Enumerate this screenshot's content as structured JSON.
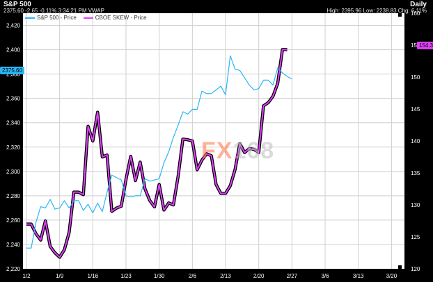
{
  "header": {
    "title": "S&P 500",
    "quote": "2375.60 -2.65 -0.11% 3:34:21 PM VWAP",
    "period": "Daily",
    "stats": "High: 2395.96 Low: 2238.83 Chg: 6.11%"
  },
  "legend": [
    {
      "label": "S&P 500 - Price",
      "color": "#29b6f6"
    },
    {
      "label": "CBOE SKEW - Price",
      "color": "#e040fb"
    }
  ],
  "price_tags": {
    "sp500": "2375.60",
    "skew": "154.34"
  },
  "watermark": {
    "part1": "FX",
    "part2": "168"
  },
  "colors": {
    "sp500": "#29b6f6",
    "skew": "#e040fb",
    "grid": "#cfcfcf",
    "plot_bg": "#ffffff",
    "frame_bg": "#000000"
  },
  "chart_data": {
    "type": "line",
    "x_ticks": [
      "1/2",
      "1/9",
      "1/16",
      "1/23",
      "1/30",
      "2/6",
      "2/13",
      "2/20",
      "2/27",
      "3/6",
      "3/13",
      "3/20"
    ],
    "left_axis": {
      "ylim": [
        2220,
        2430
      ],
      "ticks": [
        2220,
        2240,
        2260,
        2280,
        2300,
        2320,
        2340,
        2360,
        2380,
        2400,
        2420
      ]
    },
    "right_axis": {
      "ylim": [
        120,
        160
      ],
      "ticks": [
        120,
        125,
        130,
        135,
        140,
        145,
        150,
        155,
        160
      ]
    },
    "grid": true,
    "legend_position": "top-left",
    "x_day_range": [
      0,
      79
    ],
    "series": [
      {
        "name": "S&P 500 - Price",
        "axis": "left",
        "points": [
          [
            0,
            2237
          ],
          [
            1,
            2237
          ],
          [
            2,
            2258
          ],
          [
            3,
            2271
          ],
          [
            4,
            2270
          ],
          [
            5,
            2277
          ],
          [
            6,
            2269
          ],
          [
            7,
            2270
          ],
          [
            8,
            2276
          ],
          [
            9,
            2270
          ],
          [
            10,
            2276
          ],
          [
            11,
            2276
          ],
          [
            12,
            2268
          ],
          [
            13,
            2273
          ],
          [
            14,
            2266
          ],
          [
            15,
            2274
          ],
          [
            16,
            2267
          ],
          [
            17,
            2283
          ],
          [
            18,
            2297
          ],
          [
            19,
            2295
          ],
          [
            20,
            2293
          ],
          [
            21,
            2280
          ],
          [
            22,
            2279
          ],
          [
            23,
            2280
          ],
          [
            24,
            2280
          ],
          [
            25,
            2294
          ],
          [
            26,
            2292
          ],
          [
            27,
            2293
          ],
          [
            28,
            2294
          ],
          [
            29,
            2307
          ],
          [
            30,
            2316
          ],
          [
            31,
            2328
          ],
          [
            32,
            2338
          ],
          [
            33,
            2349
          ],
          [
            34,
            2347
          ],
          [
            35,
            2351
          ],
          [
            36,
            2351
          ],
          [
            37,
            2366
          ],
          [
            38,
            2364
          ],
          [
            39,
            2364
          ],
          [
            40,
            2367
          ],
          [
            41,
            2370
          ],
          [
            42,
            2363
          ],
          [
            43,
            2395
          ],
          [
            44,
            2384
          ],
          [
            45,
            2383
          ],
          [
            46,
            2377
          ],
          [
            47,
            2371
          ],
          [
            48,
            2367
          ],
          [
            49,
            2368
          ],
          [
            50,
            2375
          ],
          [
            51,
            2375
          ],
          [
            52,
            2371
          ],
          [
            53,
            2385
          ],
          [
            54,
            2381
          ],
          [
            55,
            2378
          ],
          [
            56,
            2376
          ]
        ]
      },
      {
        "name": "CBOE SKEW - Price",
        "axis": "right",
        "points": [
          [
            0,
            127.0
          ],
          [
            1,
            127.0
          ],
          [
            2,
            125.5
          ],
          [
            3,
            124.5
          ],
          [
            4,
            127.5
          ],
          [
            5,
            123.5
          ],
          [
            6,
            122.5
          ],
          [
            7,
            121.8
          ],
          [
            8,
            123.0
          ],
          [
            9,
            125.7
          ],
          [
            10,
            132.0
          ],
          [
            11,
            132.0
          ],
          [
            12,
            131.6
          ],
          [
            13,
            142.3
          ],
          [
            14,
            140.0
          ],
          [
            15,
            144.5
          ],
          [
            16,
            137.5
          ],
          [
            17,
            137.8
          ],
          [
            18,
            129.0
          ],
          [
            19,
            129.5
          ],
          [
            20,
            129.8
          ],
          [
            21,
            134.0
          ],
          [
            22,
            137.6
          ],
          [
            23,
            133.8
          ],
          [
            24,
            136.7
          ],
          [
            25,
            132.5
          ],
          [
            26,
            130.7
          ],
          [
            27,
            129.7
          ],
          [
            28,
            133.2
          ],
          [
            29,
            129.2
          ],
          [
            30,
            130.3
          ],
          [
            31,
            130.0
          ],
          [
            32,
            134.5
          ],
          [
            33,
            140.3
          ],
          [
            34,
            140.2
          ],
          [
            35,
            140.0
          ],
          [
            36,
            135.5
          ],
          [
            37,
            137.0
          ],
          [
            38,
            138.0
          ],
          [
            39,
            137.7
          ],
          [
            40,
            133.2
          ],
          [
            41,
            131.8
          ],
          [
            42,
            131.8
          ],
          [
            43,
            133.0
          ],
          [
            44,
            135.5
          ],
          [
            45,
            139.6
          ],
          [
            46,
            138.2
          ],
          [
            47,
            138.8
          ],
          [
            48,
            138.7
          ],
          [
            49,
            138.2
          ],
          [
            50,
            145.5
          ],
          [
            51,
            146.0
          ],
          [
            52,
            147.0
          ],
          [
            53,
            149.0
          ],
          [
            54,
            154.3
          ],
          [
            55,
            154.3
          ]
        ]
      }
    ]
  }
}
